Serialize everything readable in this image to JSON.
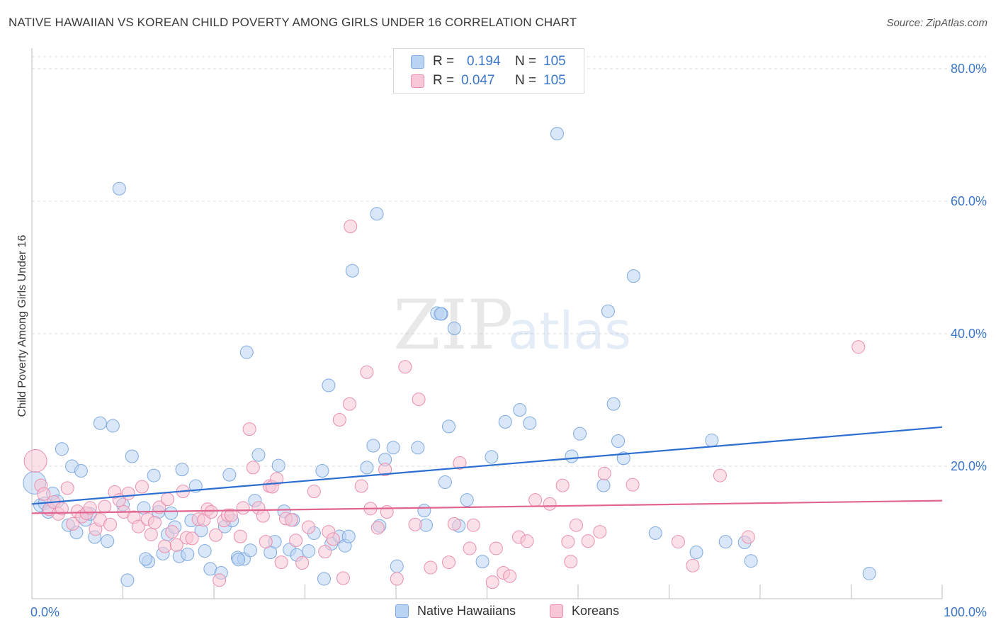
{
  "title": "NATIVE HAWAIIAN VS KOREAN CHILD POVERTY AMONG GIRLS UNDER 16 CORRELATION CHART",
  "source": "Source: ZipAtlas.com",
  "watermark": {
    "zip": "ZIP",
    "atlas": "atlas"
  },
  "colors": {
    "blue_fill": "#b9d3f3",
    "blue_stroke": "#7ea9df",
    "blue_line": "#2d6fd1",
    "pink_fill": "#f8c6d6",
    "pink_stroke": "#e98fae",
    "pink_line": "#e0648f",
    "axis_label": "#3b77c8",
    "grid": "#dcdcdc"
  },
  "legend_top": {
    "rows": [
      {
        "r_label": "R =",
        "r_value": "0.194",
        "n_label": "N =",
        "n_value": "105",
        "color": "#b9d3f3",
        "stroke": "#7ea9df"
      },
      {
        "r_label": "R =",
        "r_value": "0.047",
        "n_label": "N =",
        "n_value": "105",
        "color": "#f8c6d6",
        "stroke": "#e98fae"
      }
    ]
  },
  "chart_data": {
    "type": "scatter",
    "title": "NATIVE HAWAIIAN VS KOREAN CHILD POVERTY AMONG GIRLS UNDER 16 CORRELATION CHART",
    "xlabel": "",
    "ylabel": "Child Poverty Among Girls Under 16",
    "xlim": [
      0,
      100
    ],
    "ylim": [
      0,
      84
    ],
    "x_tick_labels": [
      "0.0%",
      "100.0%"
    ],
    "y_ticks": [
      20,
      40,
      60,
      80
    ],
    "y_tick_labels": [
      "20.0%",
      "40.0%",
      "60.0%",
      "80.0%"
    ],
    "grid": true,
    "legend_position": "bottom",
    "series": [
      {
        "name": "Native Hawaiians",
        "color": "#b9d3f3",
        "trend": {
          "x": [
            0,
            100
          ],
          "y": [
            14.3,
            25.9
          ]
        },
        "points": [
          {
            "x": 0.3,
            "y": 17.5
          },
          {
            "x": 0.9,
            "y": 14.1
          },
          {
            "x": 1.4,
            "y": 14.4
          },
          {
            "x": 1.8,
            "y": 13.1
          },
          {
            "x": 2.3,
            "y": 15.9
          },
          {
            "x": 2.8,
            "y": 14.7
          },
          {
            "x": 3.3,
            "y": 22.6
          },
          {
            "x": 4.0,
            "y": 11.1
          },
          {
            "x": 4.4,
            "y": 20.0
          },
          {
            "x": 4.9,
            "y": 10.0
          },
          {
            "x": 5.4,
            "y": 19.3
          },
          {
            "x": 5.9,
            "y": 11.9
          },
          {
            "x": 6.4,
            "y": 12.8
          },
          {
            "x": 6.9,
            "y": 9.3
          },
          {
            "x": 7.5,
            "y": 26.5
          },
          {
            "x": 8.3,
            "y": 8.7
          },
          {
            "x": 8.9,
            "y": 26.1
          },
          {
            "x": 9.6,
            "y": 61.9
          },
          {
            "x": 10.0,
            "y": 14.2
          },
          {
            "x": 10.5,
            "y": 2.8
          },
          {
            "x": 11.0,
            "y": 21.5
          },
          {
            "x": 12.3,
            "y": 13.7
          },
          {
            "x": 12.8,
            "y": 5.6
          },
          {
            "x": 13.4,
            "y": 18.6
          },
          {
            "x": 13.9,
            "y": 13.1
          },
          {
            "x": 14.4,
            "y": 6.8
          },
          {
            "x": 14.9,
            "y": 9.7
          },
          {
            "x": 15.3,
            "y": 12.9
          },
          {
            "x": 15.7,
            "y": 10.8
          },
          {
            "x": 16.2,
            "y": 6.4
          },
          {
            "x": 16.5,
            "y": 19.5
          },
          {
            "x": 17.1,
            "y": 6.7
          },
          {
            "x": 17.5,
            "y": 11.8
          },
          {
            "x": 18.0,
            "y": 17.0
          },
          {
            "x": 18.6,
            "y": 10.3
          },
          {
            "x": 19.0,
            "y": 7.2
          },
          {
            "x": 19.6,
            "y": 4.5
          },
          {
            "x": 20.8,
            "y": 3.9
          },
          {
            "x": 21.2,
            "y": 10.9
          },
          {
            "x": 21.7,
            "y": 18.7
          },
          {
            "x": 22.0,
            "y": 11.8
          },
          {
            "x": 22.6,
            "y": 6.2
          },
          {
            "x": 23.3,
            "y": 6.0
          },
          {
            "x": 23.6,
            "y": 37.2
          },
          {
            "x": 24.0,
            "y": 7.3
          },
          {
            "x": 24.5,
            "y": 14.8
          },
          {
            "x": 24.9,
            "y": 21.7
          },
          {
            "x": 26.2,
            "y": 7.0
          },
          {
            "x": 26.7,
            "y": 8.6
          },
          {
            "x": 27.1,
            "y": 20.1
          },
          {
            "x": 27.7,
            "y": 13.2
          },
          {
            "x": 28.3,
            "y": 7.4
          },
          {
            "x": 28.7,
            "y": 11.9
          },
          {
            "x": 29.1,
            "y": 6.6
          },
          {
            "x": 30.4,
            "y": 7.2
          },
          {
            "x": 31.0,
            "y": 9.9
          },
          {
            "x": 31.9,
            "y": 19.3
          },
          {
            "x": 32.1,
            "y": 3.0
          },
          {
            "x": 32.6,
            "y": 32.2
          },
          {
            "x": 32.9,
            "y": 8.3
          },
          {
            "x": 33.8,
            "y": 9.4
          },
          {
            "x": 34.4,
            "y": 8.0
          },
          {
            "x": 34.8,
            "y": 9.4
          },
          {
            "x": 35.2,
            "y": 49.5
          },
          {
            "x": 36.8,
            "y": 19.8
          },
          {
            "x": 37.5,
            "y": 23.1
          },
          {
            "x": 37.9,
            "y": 58.1
          },
          {
            "x": 38.2,
            "y": 11.0
          },
          {
            "x": 38.8,
            "y": 21.0
          },
          {
            "x": 39.7,
            "y": 22.8
          },
          {
            "x": 40.1,
            "y": 4.9
          },
          {
            "x": 42.4,
            "y": 22.8
          },
          {
            "x": 43.1,
            "y": 13.3
          },
          {
            "x": 43.3,
            "y": 11.1
          },
          {
            "x": 44.5,
            "y": 43.1
          },
          {
            "x": 45.0,
            "y": 43.0
          },
          {
            "x": 45.4,
            "y": 17.6
          },
          {
            "x": 45.8,
            "y": 26.0
          },
          {
            "x": 46.4,
            "y": 40.8
          },
          {
            "x": 46.9,
            "y": 11.0
          },
          {
            "x": 47.8,
            "y": 14.9
          },
          {
            "x": 49.5,
            "y": 5.6
          },
          {
            "x": 50.5,
            "y": 21.4
          },
          {
            "x": 52.0,
            "y": 26.7
          },
          {
            "x": 53.6,
            "y": 28.5
          },
          {
            "x": 54.7,
            "y": 26.5
          },
          {
            "x": 57.7,
            "y": 70.2
          },
          {
            "x": 59.3,
            "y": 21.5
          },
          {
            "x": 60.2,
            "y": 24.9
          },
          {
            "x": 62.8,
            "y": 17.1
          },
          {
            "x": 63.3,
            "y": 43.4
          },
          {
            "x": 63.9,
            "y": 29.4
          },
          {
            "x": 64.4,
            "y": 23.8
          },
          {
            "x": 65.0,
            "y": 21.2
          },
          {
            "x": 66.1,
            "y": 48.7
          },
          {
            "x": 68.5,
            "y": 9.9
          },
          {
            "x": 73.0,
            "y": 7.0
          },
          {
            "x": 74.7,
            "y": 23.9
          },
          {
            "x": 76.2,
            "y": 8.6
          },
          {
            "x": 78.3,
            "y": 8.5
          },
          {
            "x": 79.0,
            "y": 5.7
          },
          {
            "x": 92.0,
            "y": 3.8
          },
          {
            "x": 44.9,
            "y": 43.0
          },
          {
            "x": 12.5,
            "y": 6.0
          },
          {
            "x": 22.7,
            "y": 5.9
          }
        ]
      },
      {
        "name": "Koreans",
        "color": "#f8c6d6",
        "trend": {
          "x": [
            0,
            100
          ],
          "y": [
            12.9,
            14.8
          ]
        },
        "points": [
          {
            "x": 0.4,
            "y": 20.8
          },
          {
            "x": 1.0,
            "y": 17.1
          },
          {
            "x": 1.3,
            "y": 15.8
          },
          {
            "x": 1.9,
            "y": 13.5
          },
          {
            "x": 2.4,
            "y": 14.6
          },
          {
            "x": 2.9,
            "y": 12.8
          },
          {
            "x": 3.3,
            "y": 13.6
          },
          {
            "x": 3.9,
            "y": 16.7
          },
          {
            "x": 4.5,
            "y": 11.3
          },
          {
            "x": 5.0,
            "y": 13.2
          },
          {
            "x": 5.5,
            "y": 12.4
          },
          {
            "x": 6.0,
            "y": 12.9
          },
          {
            "x": 6.4,
            "y": 13.7
          },
          {
            "x": 7.0,
            "y": 10.5
          },
          {
            "x": 7.5,
            "y": 11.9
          },
          {
            "x": 8.0,
            "y": 13.9
          },
          {
            "x": 8.6,
            "y": 11.2
          },
          {
            "x": 9.1,
            "y": 16.1
          },
          {
            "x": 9.6,
            "y": 14.9
          },
          {
            "x": 10.1,
            "y": 13.1
          },
          {
            "x": 10.6,
            "y": 15.9
          },
          {
            "x": 11.2,
            "y": 12.3
          },
          {
            "x": 11.7,
            "y": 10.9
          },
          {
            "x": 12.1,
            "y": 16.9
          },
          {
            "x": 12.7,
            "y": 12.0
          },
          {
            "x": 13.1,
            "y": 9.7
          },
          {
            "x": 13.5,
            "y": 11.5
          },
          {
            "x": 14.0,
            "y": 13.8
          },
          {
            "x": 14.6,
            "y": 7.9
          },
          {
            "x": 14.9,
            "y": 15.0
          },
          {
            "x": 15.4,
            "y": 10.1
          },
          {
            "x": 15.9,
            "y": 8.1
          },
          {
            "x": 16.6,
            "y": 16.2
          },
          {
            "x": 17.0,
            "y": 9.2
          },
          {
            "x": 17.6,
            "y": 9.1
          },
          {
            "x": 18.3,
            "y": 12.0
          },
          {
            "x": 18.9,
            "y": 11.9
          },
          {
            "x": 19.3,
            "y": 13.5
          },
          {
            "x": 19.7,
            "y": 13.1
          },
          {
            "x": 20.2,
            "y": 9.6
          },
          {
            "x": 20.6,
            "y": 2.8
          },
          {
            "x": 21.1,
            "y": 11.8
          },
          {
            "x": 21.5,
            "y": 12.6
          },
          {
            "x": 21.9,
            "y": 12.6
          },
          {
            "x": 22.9,
            "y": 9.4
          },
          {
            "x": 23.2,
            "y": 13.7
          },
          {
            "x": 23.9,
            "y": 25.6
          },
          {
            "x": 24.3,
            "y": 19.8
          },
          {
            "x": 24.9,
            "y": 13.7
          },
          {
            "x": 25.7,
            "y": 8.6
          },
          {
            "x": 26.1,
            "y": 17.0
          },
          {
            "x": 26.4,
            "y": 16.9
          },
          {
            "x": 26.9,
            "y": 18.1
          },
          {
            "x": 27.4,
            "y": 5.5
          },
          {
            "x": 27.9,
            "y": 12.1
          },
          {
            "x": 28.5,
            "y": 11.9
          },
          {
            "x": 29.0,
            "y": 8.8
          },
          {
            "x": 29.7,
            "y": 5.4
          },
          {
            "x": 30.4,
            "y": 10.8
          },
          {
            "x": 31.0,
            "y": 16.2
          },
          {
            "x": 32.2,
            "y": 7.1
          },
          {
            "x": 32.6,
            "y": 10.1
          },
          {
            "x": 33.1,
            "y": 9.0
          },
          {
            "x": 33.8,
            "y": 27.0
          },
          {
            "x": 34.2,
            "y": 3.1
          },
          {
            "x": 34.9,
            "y": 29.4
          },
          {
            "x": 36.2,
            "y": 17.0
          },
          {
            "x": 36.8,
            "y": 34.2
          },
          {
            "x": 37.2,
            "y": 13.6
          },
          {
            "x": 38.0,
            "y": 10.7
          },
          {
            "x": 38.8,
            "y": 19.5
          },
          {
            "x": 39.0,
            "y": 13.1
          },
          {
            "x": 40.1,
            "y": 3.0
          },
          {
            "x": 41.0,
            "y": 35.0
          },
          {
            "x": 42.1,
            "y": 11.2
          },
          {
            "x": 42.5,
            "y": 30.1
          },
          {
            "x": 43.8,
            "y": 4.7
          },
          {
            "x": 45.8,
            "y": 5.5
          },
          {
            "x": 46.4,
            "y": 11.3
          },
          {
            "x": 47.0,
            "y": 20.5
          },
          {
            "x": 48.1,
            "y": 7.6
          },
          {
            "x": 48.5,
            "y": 11.1
          },
          {
            "x": 50.6,
            "y": 2.5
          },
          {
            "x": 51.0,
            "y": 7.6
          },
          {
            "x": 51.8,
            "y": 3.9
          },
          {
            "x": 52.5,
            "y": 3.4
          },
          {
            "x": 53.5,
            "y": 9.3
          },
          {
            "x": 54.4,
            "y": 8.7
          },
          {
            "x": 55.3,
            "y": 14.9
          },
          {
            "x": 56.9,
            "y": 14.3
          },
          {
            "x": 58.3,
            "y": 17.1
          },
          {
            "x": 58.9,
            "y": 8.6
          },
          {
            "x": 59.2,
            "y": 5.6
          },
          {
            "x": 59.8,
            "y": 11.1
          },
          {
            "x": 61.1,
            "y": 8.7
          },
          {
            "x": 62.4,
            "y": 10.1
          },
          {
            "x": 62.9,
            "y": 18.9
          },
          {
            "x": 66.0,
            "y": 17.2
          },
          {
            "x": 71.0,
            "y": 8.6
          },
          {
            "x": 72.6,
            "y": 5.0
          },
          {
            "x": 75.6,
            "y": 18.6
          },
          {
            "x": 78.7,
            "y": 9.3
          },
          {
            "x": 90.8,
            "y": 38.0
          },
          {
            "x": 35.0,
            "y": 56.2
          },
          {
            "x": 25.4,
            "y": 12.5
          }
        ]
      }
    ]
  },
  "bottom_legend": [
    {
      "label": "Native Hawaiians",
      "color": "#b9d3f3",
      "stroke": "#7ea9df"
    },
    {
      "label": "Koreans",
      "color": "#f8c6d6",
      "stroke": "#e98fae"
    }
  ]
}
